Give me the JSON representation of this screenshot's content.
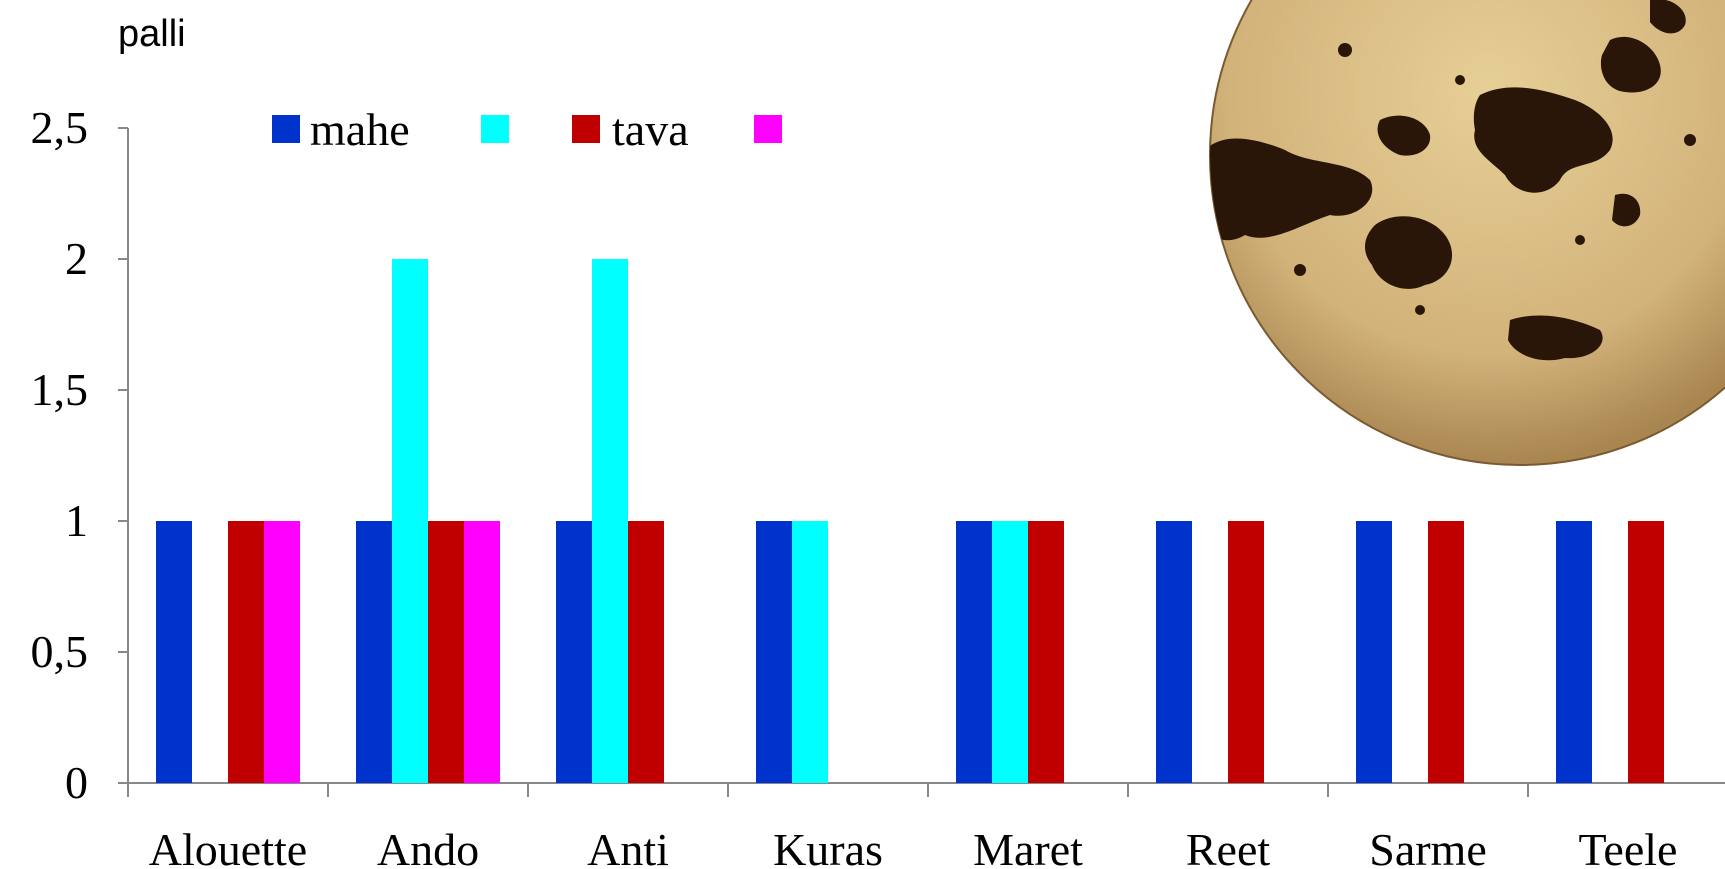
{
  "chart_data": {
    "type": "bar",
    "ylabel": "palli",
    "ylim": [
      0,
      2.5
    ],
    "yticks": [
      "0",
      "0,5",
      "1",
      "1,5",
      "2",
      "2,5"
    ],
    "ytick_values": [
      0,
      0.5,
      1,
      1.5,
      2,
      2.5
    ],
    "categories": [
      "Alouette",
      "Ando",
      "Anti",
      "Kuras",
      "Maret",
      "Reet",
      "Sarme",
      "Teele"
    ],
    "series": [
      {
        "name": "mahe",
        "color": "#0033CC",
        "values": [
          1,
          1,
          1,
          1,
          1,
          1,
          1,
          1
        ]
      },
      {
        "name": "",
        "color": "#00FFFF",
        "values": [
          0,
          2,
          2,
          1,
          1,
          0,
          0,
          0
        ]
      },
      {
        "name": "tava",
        "color": "#C00000",
        "values": [
          1,
          1,
          1,
          0,
          1,
          1,
          1,
          1
        ]
      },
      {
        "name": "",
        "color": "#FF00FF",
        "values": [
          1,
          1,
          0,
          0,
          0,
          0,
          0,
          0
        ]
      }
    ],
    "legend_position": "top-left",
    "grid": false
  },
  "photo": {
    "icon": "potato-tuber-photo",
    "colors": {
      "skin": "#D2B37A",
      "spot": "#2A1608"
    }
  }
}
